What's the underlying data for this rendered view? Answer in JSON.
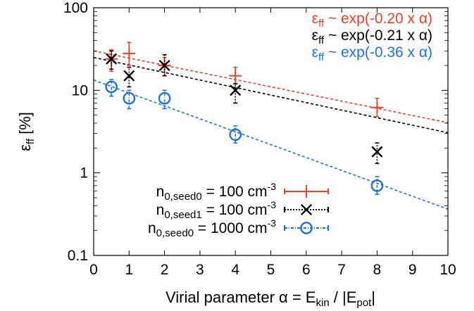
{
  "chart_data": {
    "type": "scatter",
    "xlabel": {
      "main": "Virial parameter α = E",
      "sub1": "kin",
      "mid": " / |E",
      "sub2": "pot",
      "end": "|"
    },
    "ylabel": {
      "main": "ε",
      "sub": "ff",
      "end": " [%]"
    },
    "xlim": [
      0,
      10
    ],
    "ylim": [
      0.1,
      100
    ],
    "yscale": "log",
    "grid": false,
    "x_ticks": [
      "0",
      "1",
      "2",
      "3",
      "4",
      "5",
      "6",
      "7",
      "8",
      "9",
      "10"
    ],
    "y_ticks": [
      "0.1",
      "1",
      "10",
      "100"
    ],
    "legend_position": "bottom-left",
    "series": [
      {
        "legend": {
          "prefix": "n",
          "sub": "0,seed0",
          "eq": " = 100 cm",
          "sup": "-3"
        },
        "color": "#e8412c",
        "marker": "plus",
        "line_style": "solid",
        "points": [
          {
            "x": 0.5,
            "y": 24,
            "ylo": 17,
            "yhi": 31
          },
          {
            "x": 1,
            "y": 28,
            "ylo": 20,
            "yhi": 38
          },
          {
            "x": 2,
            "y": 20,
            "ylo": 15,
            "yhi": 25
          },
          {
            "x": 4,
            "y": 15,
            "ylo": 12,
            "yhi": 19
          },
          {
            "x": 8,
            "y": 6.2,
            "ylo": 4.8,
            "yhi": 8
          }
        ],
        "fit": {
          "label": "~ exp(-0.20 x α)",
          "slope": -0.2,
          "y0": 30
        }
      },
      {
        "legend": {
          "prefix": "n",
          "sub": "0,seed1",
          "eq": " = 100 cm",
          "sup": "-3"
        },
        "color": "#000000",
        "marker": "cross",
        "line_style": "dotted",
        "points": [
          {
            "x": 0.5,
            "y": 24,
            "ylo": 18,
            "yhi": 30
          },
          {
            "x": 1,
            "y": 15,
            "ylo": 11,
            "yhi": 19
          },
          {
            "x": 2,
            "y": 20,
            "ylo": 15,
            "yhi": 27
          },
          {
            "x": 4,
            "y": 10,
            "ylo": 7,
            "yhi": 12
          },
          {
            "x": 8,
            "y": 1.8,
            "ylo": 1.3,
            "yhi": 2.3
          }
        ],
        "fit": {
          "label": "~ exp(-0.21 x α)",
          "slope": -0.21,
          "y0": 25
        }
      },
      {
        "legend": {
          "prefix": "n",
          "sub": "0,seed0",
          "eq": " = 1000 cm",
          "sup": "-3"
        },
        "color": "#1e6fe0",
        "marker": "circle",
        "line_style": "dashdot",
        "points": [
          {
            "x": 0.5,
            "y": 11,
            "ylo": 8.5,
            "yhi": 13.5
          },
          {
            "x": 1,
            "y": 8,
            "ylo": 6,
            "yhi": 10
          },
          {
            "x": 2,
            "y": 8,
            "ylo": 6,
            "yhi": 10
          },
          {
            "x": 4,
            "y": 2.9,
            "ylo": 2.3,
            "yhi": 3.7
          },
          {
            "x": 8,
            "y": 0.7,
            "ylo": 0.55,
            "yhi": 0.9
          }
        ],
        "fit": {
          "label": "~ exp(-0.36 x α)",
          "slope": -0.36,
          "y0": 13.3
        }
      }
    ],
    "fit_label_prefix": {
      "main": "ε",
      "sub": "ff"
    }
  }
}
